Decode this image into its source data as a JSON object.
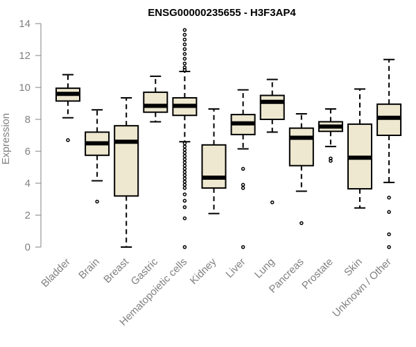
{
  "chart_data": {
    "type": "boxplot",
    "title": "ENSG00000235655 - H3F3AP4",
    "xlabel": "",
    "ylabel": "Expression",
    "ylim": [
      0,
      14
    ],
    "yticks": [
      0,
      2,
      4,
      6,
      8,
      10,
      12,
      14
    ],
    "categories": [
      "Bladder",
      "Brain",
      "Breast",
      "Gastric",
      "Hematopoietic cells",
      "Kidney",
      "Liver",
      "Lung",
      "Pancreas",
      "Prostate",
      "Skin",
      "Unknown / Other"
    ],
    "boxes": [
      {
        "name": "Bladder",
        "whisker_low": 8.1,
        "q1": 9.15,
        "median": 9.6,
        "q3": 9.95,
        "whisker_high": 10.8,
        "outliers": [
          6.7
        ]
      },
      {
        "name": "Brain",
        "whisker_low": 4.15,
        "q1": 5.75,
        "median": 6.5,
        "q3": 7.2,
        "whisker_high": 8.6,
        "outliers": [
          2.85
        ]
      },
      {
        "name": "Breast",
        "whisker_low": 0.0,
        "q1": 3.2,
        "median": 6.6,
        "q3": 7.6,
        "whisker_high": 9.35,
        "outliers": []
      },
      {
        "name": "Gastric",
        "whisker_low": 7.85,
        "q1": 8.45,
        "median": 8.85,
        "q3": 9.7,
        "whisker_high": 10.7,
        "outliers": []
      },
      {
        "name": "Hematopoietic cells",
        "whisker_low": 6.6,
        "q1": 8.25,
        "median": 8.85,
        "q3": 9.35,
        "whisker_high": 11.0,
        "outliers": [
          13.6,
          13.3,
          13.0,
          12.7,
          12.4,
          12.1,
          11.8,
          11.5,
          11.25,
          11.1,
          6.5,
          6.3,
          6.1,
          5.9,
          5.7,
          5.5,
          5.3,
          5.1,
          4.9,
          4.7,
          4.5,
          4.3,
          4.1,
          3.9,
          3.7,
          3.3,
          2.9,
          2.5,
          1.8,
          0.0
        ]
      },
      {
        "name": "Kidney",
        "whisker_low": 2.1,
        "q1": 3.7,
        "median": 4.35,
        "q3": 6.4,
        "whisker_high": 8.65,
        "outliers": []
      },
      {
        "name": "Liver",
        "whisker_low": 6.15,
        "q1": 7.05,
        "median": 7.75,
        "q3": 8.3,
        "whisker_high": 9.85,
        "outliers": [
          4.9,
          3.9,
          3.7,
          0.0
        ]
      },
      {
        "name": "Lung",
        "whisker_low": 7.2,
        "q1": 8.0,
        "median": 9.1,
        "q3": 9.5,
        "whisker_high": 10.5,
        "outliers": [
          2.8
        ]
      },
      {
        "name": "Pancreas",
        "whisker_low": 3.5,
        "q1": 5.1,
        "median": 6.85,
        "q3": 7.45,
        "whisker_high": 8.35,
        "outliers": [
          1.5
        ]
      },
      {
        "name": "Prostate",
        "whisker_low": 6.3,
        "q1": 7.25,
        "median": 7.55,
        "q3": 7.85,
        "whisker_high": 8.65,
        "outliers": [
          5.55,
          5.4
        ]
      },
      {
        "name": "Skin",
        "whisker_low": 2.45,
        "q1": 3.65,
        "median": 5.6,
        "q3": 7.7,
        "whisker_high": 9.9,
        "outliers": []
      },
      {
        "name": "Unknown / Other",
        "whisker_low": 4.05,
        "q1": 7.0,
        "median": 8.1,
        "q3": 8.95,
        "whisker_high": 11.75,
        "outliers": [
          3.1,
          2.2,
          0.8,
          0.0
        ]
      }
    ],
    "colors": {
      "box_fill": "#EEE8D0",
      "stroke": "#000000",
      "axis": "#808080",
      "title": "#000000"
    }
  }
}
